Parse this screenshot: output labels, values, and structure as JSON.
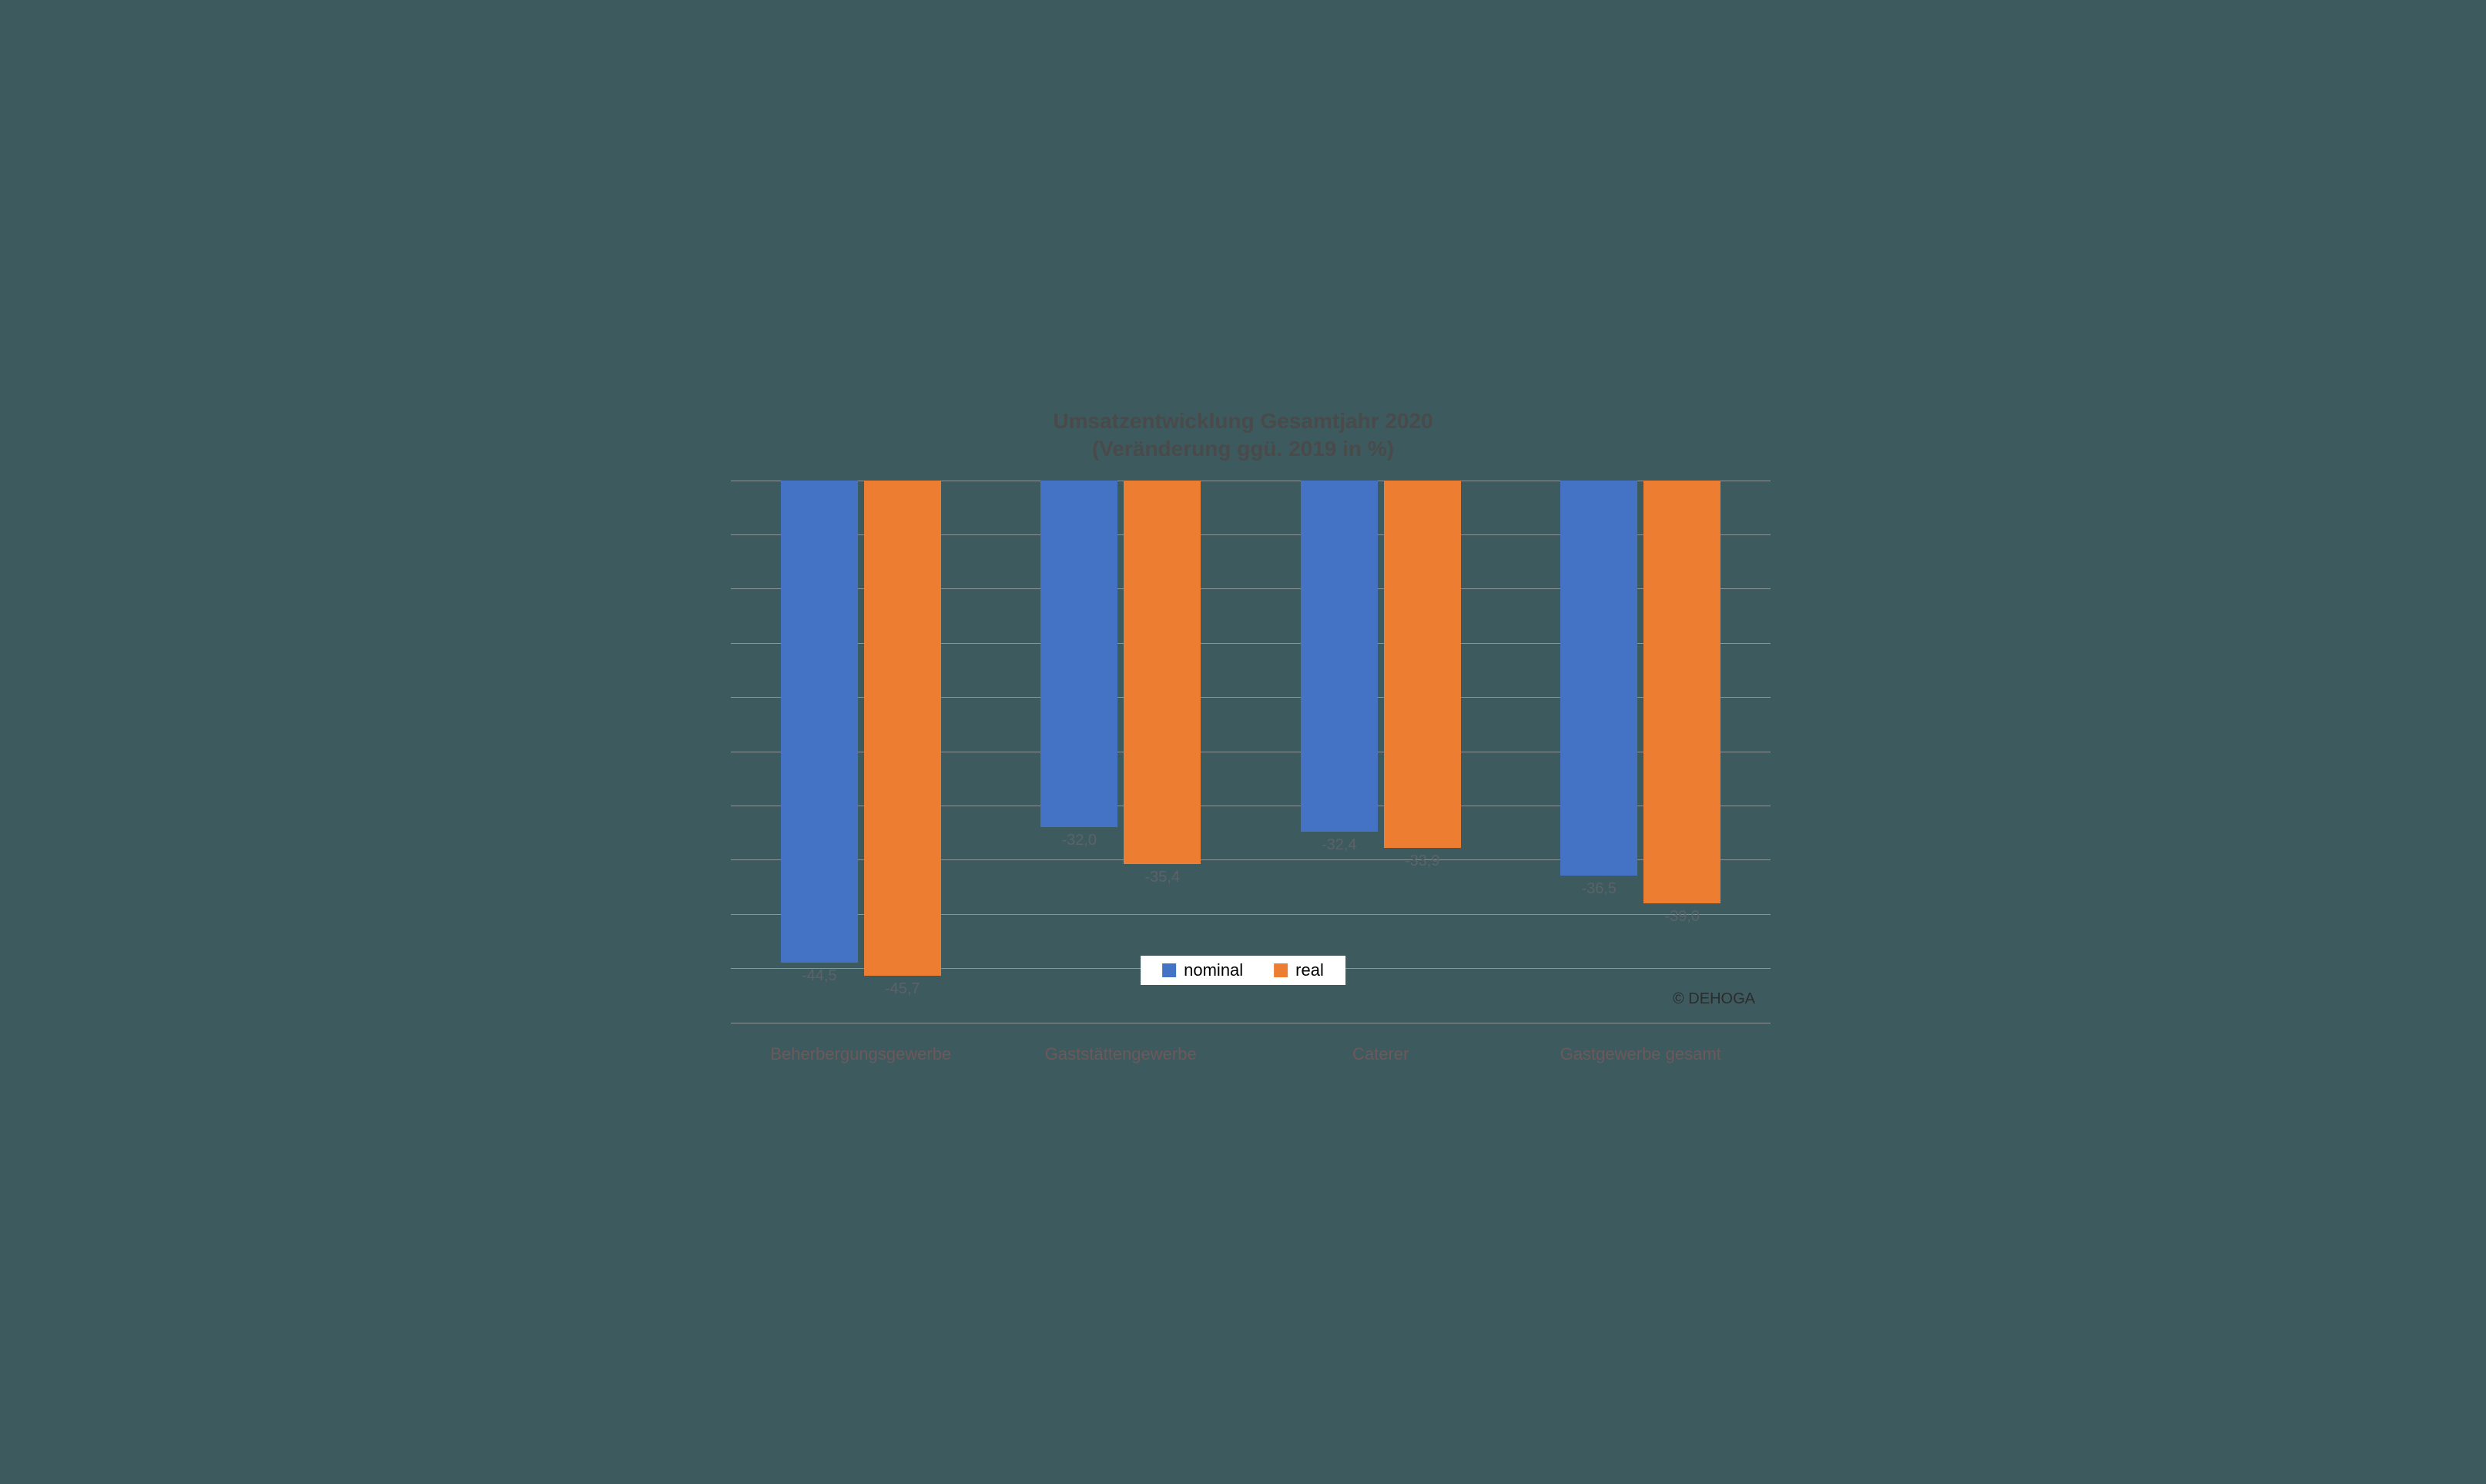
{
  "chart": {
    "type": "bar",
    "title_line1": "Umsatzentwicklung Gesamtjahr 2020",
    "title_line2": "(Veränderung ggü. 2019 in %)",
    "title_fontsize": 28,
    "title_color": "#4a4a4a",
    "background_color": "#3d5a5f",
    "grid_color": "#8b9598",
    "ylim_min": -50,
    "ylim_max": 0,
    "ytick_step": 5,
    "categories": [
      {
        "label": "Beherbergungsgewerbe",
        "nominal": -44.5,
        "real": -45.7,
        "nominal_label": "-44,5",
        "real_label": "-45,7"
      },
      {
        "label": "Gaststättengewerbe",
        "nominal": -32.0,
        "real": -35.4,
        "nominal_label": "-32,0",
        "real_label": "-35,4"
      },
      {
        "label": "Caterer",
        "nominal": -32.4,
        "real": -33.9,
        "nominal_label": "-32,4",
        "real_label": "-33,9"
      },
      {
        "label": "Gastgewerbe gesamt",
        "nominal": -36.5,
        "real": -39.0,
        "nominal_label": "-36,5",
        "real_label": "-39,0"
      }
    ],
    "series": {
      "nominal": {
        "label": "nominal",
        "color": "#4472c4"
      },
      "real": {
        "label": "real",
        "color": "#ed7d31"
      }
    },
    "bar_width_ratio": 0.37,
    "bar_gap_ratio": 0.03,
    "group_width_ratio": 0.8,
    "label_fontsize": 20,
    "label_color": "#5b6367",
    "cat_label_fontsize": 22,
    "cat_label_color": "#6e585a",
    "legend_bg": "#ffffff",
    "legend_fontsize": 22,
    "copyright": "© DEHOGA",
    "copyright_fontsize": 20,
    "copyright_color": "#2c2c2c"
  }
}
